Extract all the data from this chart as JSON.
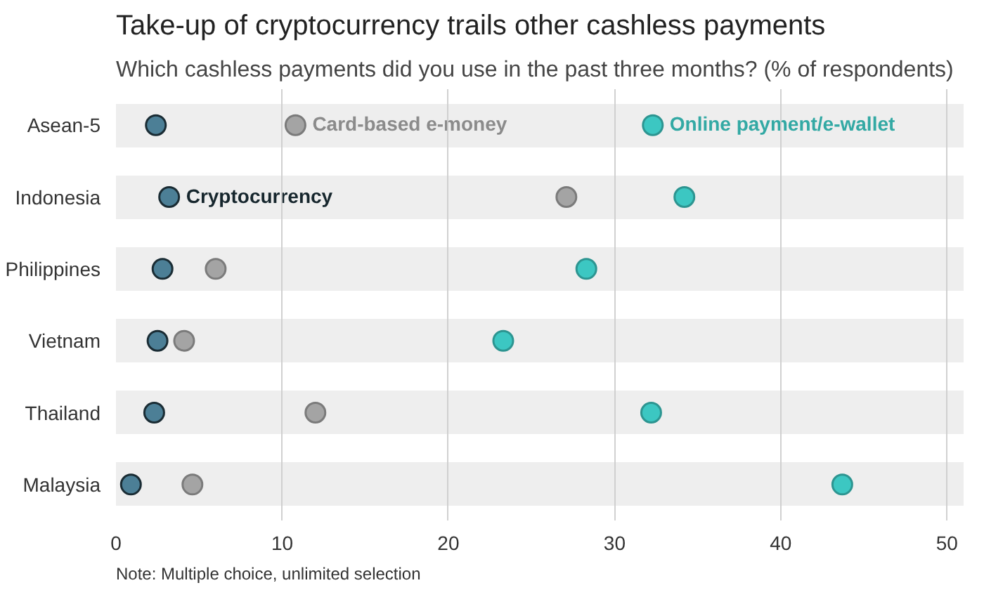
{
  "chart_data": {
    "type": "scatter",
    "orientation": "horizontal",
    "title": "Take-up of cryptocurrency trails other cashless payments",
    "subtitle": "Which cashless payments did you use in the past three months? (% of respondents)",
    "categories": [
      "Asean-5",
      "Indonesia",
      "Philippines",
      "Vietnam",
      "Thailand",
      "Malaysia"
    ],
    "series": [
      {
        "name": "Cryptocurrency",
        "color": "#4c7f96",
        "values": [
          2.4,
          3.2,
          2.8,
          2.5,
          2.3,
          0.9
        ]
      },
      {
        "name": "Card-based e-money",
        "color": "#a4a4a4",
        "values": [
          10.8,
          27.1,
          6.0,
          4.1,
          12.0,
          4.6
        ]
      },
      {
        "name": "Online payment/e-wallet",
        "color": "#3cc7c2",
        "values": [
          32.3,
          34.2,
          28.3,
          23.3,
          32.2,
          43.7
        ]
      }
    ],
    "xlim": [
      0,
      51
    ],
    "xticks": [
      0,
      10,
      20,
      30,
      40,
      50
    ],
    "grid": true,
    "marker": "circle",
    "annotations": [
      "Note: Multiple choice, unlimited selection"
    ]
  }
}
